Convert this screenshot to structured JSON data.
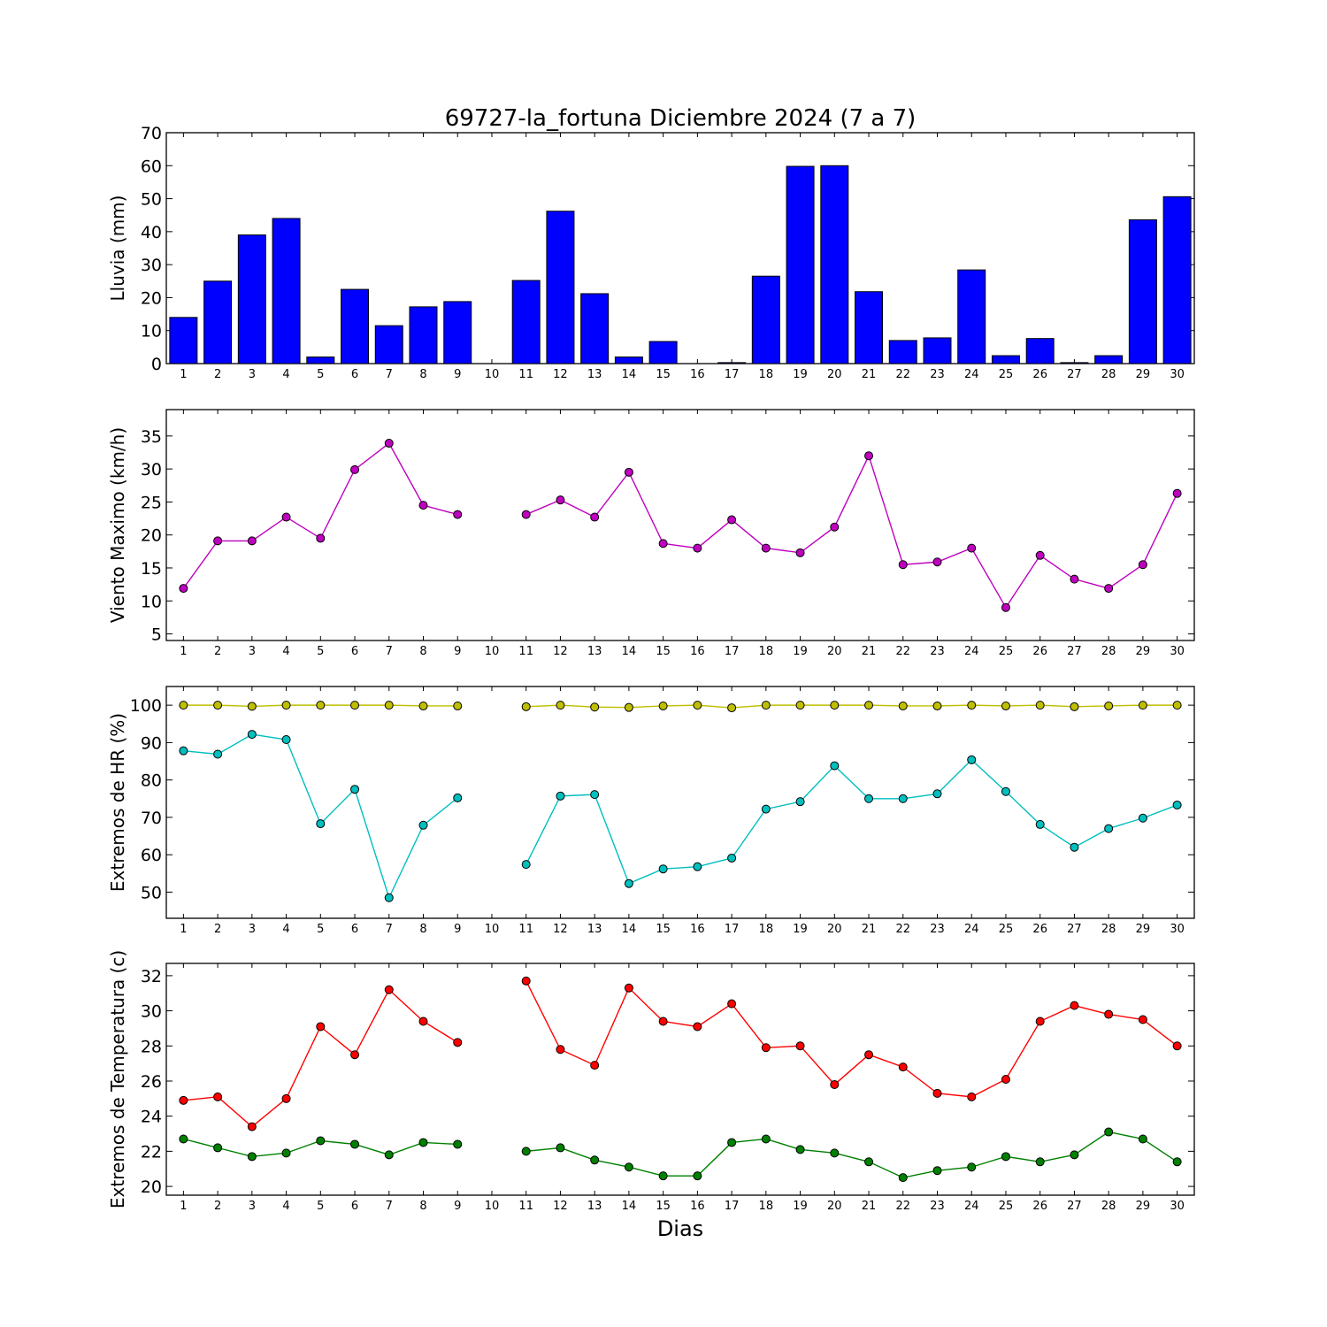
{
  "figure": {
    "title": "69727-la_fortuna Diciembre 2024  (7 a 7)",
    "xlabel": "Dias"
  },
  "chart_data": [
    {
      "type": "bar",
      "ylabel": "Lluvia (mm)",
      "ylim": [
        0,
        70
      ],
      "yticks": [
        0,
        10,
        20,
        30,
        40,
        50,
        60,
        70
      ],
      "categories": [
        1,
        2,
        3,
        4,
        5,
        6,
        7,
        8,
        9,
        10,
        11,
        12,
        13,
        14,
        15,
        16,
        17,
        18,
        19,
        20,
        21,
        22,
        23,
        24,
        25,
        26,
        27,
        28,
        29,
        30
      ],
      "xlim": [
        0.5,
        30.5
      ],
      "series": [
        {
          "color": "#0000ff",
          "values": [
            14.0,
            25.0,
            39.0,
            44.0,
            2.0,
            22.5,
            11.5,
            17.2,
            18.8,
            0.0,
            25.2,
            46.2,
            21.2,
            2.0,
            6.7,
            0.0,
            0.3,
            26.5,
            59.8,
            60.0,
            21.8,
            7.0,
            7.8,
            28.4,
            2.4,
            7.6,
            0.3,
            2.4,
            43.6,
            50.6
          ]
        }
      ],
      "grid": false
    },
    {
      "type": "line",
      "ylabel": "Viento Maximo (km/h)",
      "ylim": [
        4,
        39
      ],
      "yticks": [
        5,
        10,
        15,
        20,
        25,
        30,
        35
      ],
      "x": [
        1,
        2,
        3,
        4,
        5,
        6,
        7,
        8,
        9,
        10,
        11,
        12,
        13,
        14,
        15,
        16,
        17,
        18,
        19,
        20,
        21,
        22,
        23,
        24,
        25,
        26,
        27,
        28,
        29,
        30
      ],
      "xlim": [
        0.5,
        30.5
      ],
      "series": [
        {
          "color": "#bf00bf",
          "values": [
            11.9,
            19.1,
            19.1,
            22.7,
            19.5,
            29.9,
            33.9,
            24.5,
            23.1,
            null,
            23.1,
            25.3,
            22.7,
            29.5,
            18.7,
            18.0,
            22.3,
            18.0,
            17.3,
            21.2,
            32.0,
            15.5,
            15.9,
            18.0,
            9.0,
            16.9,
            13.3,
            11.9,
            15.5,
            26.3
          ]
        }
      ],
      "grid": false
    },
    {
      "type": "line",
      "ylabel": "Extremos de HR (%)",
      "ylim": [
        43,
        105
      ],
      "yticks": [
        50,
        60,
        70,
        80,
        90,
        100
      ],
      "x": [
        1,
        2,
        3,
        4,
        5,
        6,
        7,
        8,
        9,
        10,
        11,
        12,
        13,
        14,
        15,
        16,
        17,
        18,
        19,
        20,
        21,
        22,
        23,
        24,
        25,
        26,
        27,
        28,
        29,
        30
      ],
      "xlim": [
        0.5,
        30.5
      ],
      "series": [
        {
          "color": "#bfbf00",
          "values": [
            100,
            100,
            99.7,
            100,
            100,
            100,
            100,
            99.8,
            99.8,
            null,
            99.6,
            100,
            99.5,
            99.4,
            99.8,
            100,
            99.3,
            100,
            100,
            100,
            100,
            99.8,
            99.8,
            100,
            99.8,
            100,
            99.6,
            99.8,
            100,
            100
          ]
        },
        {
          "color": "#00bfbf",
          "values": [
            87.8,
            86.9,
            92.2,
            90.8,
            68.3,
            77.5,
            48.5,
            67.9,
            75.2,
            null,
            57.4,
            75.7,
            76.1,
            52.3,
            56.2,
            56.8,
            59.1,
            72.2,
            74.2,
            83.8,
            75.0,
            75.0,
            76.3,
            85.4,
            76.9,
            68.1,
            62.0,
            67.0,
            69.8,
            73.3
          ]
        }
      ],
      "grid": false
    },
    {
      "type": "line",
      "ylabel": "Extremos de Temperatura (c)",
      "ylim": [
        19.5,
        32.7
      ],
      "yticks": [
        20,
        22,
        24,
        26,
        28,
        30,
        32
      ],
      "x": [
        1,
        2,
        3,
        4,
        5,
        6,
        7,
        8,
        9,
        10,
        11,
        12,
        13,
        14,
        15,
        16,
        17,
        18,
        19,
        20,
        21,
        22,
        23,
        24,
        25,
        26,
        27,
        28,
        29,
        30
      ],
      "xlim": [
        0.5,
        30.5
      ],
      "series": [
        {
          "color": "#ff0000",
          "values": [
            24.9,
            25.1,
            23.4,
            25.0,
            29.1,
            27.5,
            31.2,
            29.4,
            28.2,
            null,
            31.7,
            27.8,
            26.9,
            31.3,
            29.4,
            29.1,
            30.4,
            27.9,
            28.0,
            25.8,
            27.5,
            26.8,
            25.3,
            25.1,
            26.1,
            29.4,
            30.3,
            29.8,
            29.5,
            28.0
          ]
        },
        {
          "color": "#008000",
          "values": [
            22.7,
            22.2,
            21.7,
            21.9,
            22.6,
            22.4,
            21.8,
            22.5,
            22.4,
            null,
            22.0,
            22.2,
            21.5,
            21.1,
            20.6,
            20.6,
            22.5,
            22.7,
            22.1,
            21.9,
            21.4,
            20.5,
            20.9,
            21.1,
            21.7,
            21.4,
            21.8,
            23.1,
            22.7,
            21.4
          ]
        }
      ],
      "grid": false
    }
  ]
}
